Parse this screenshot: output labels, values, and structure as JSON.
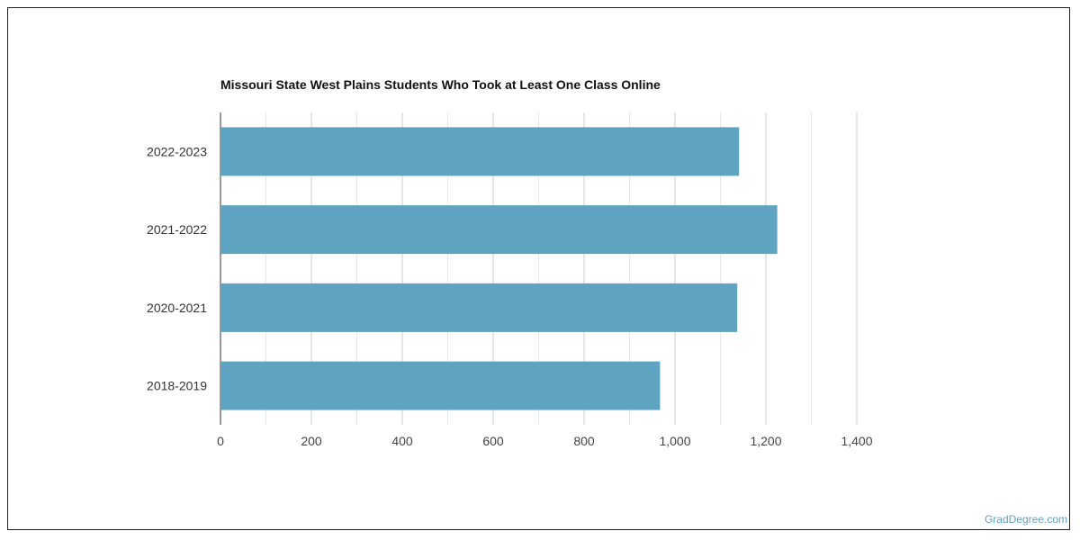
{
  "chart_data": {
    "type": "bar",
    "orientation": "horizontal",
    "title": "Missouri State West Plains Students Who Took at Least One Class Online",
    "categories": [
      "2022-2023",
      "2021-2022",
      "2020-2021",
      "2018-2019"
    ],
    "values": [
      1141,
      1225,
      1137,
      967
    ],
    "xlim": [
      0,
      1400
    ],
    "xticks": [
      "0",
      "200",
      "400",
      "600",
      "800",
      "1,000",
      "1,200",
      "1,400"
    ],
    "grid": true,
    "bar_color": "#5ea3c0"
  },
  "credit": "GradDegree.com"
}
